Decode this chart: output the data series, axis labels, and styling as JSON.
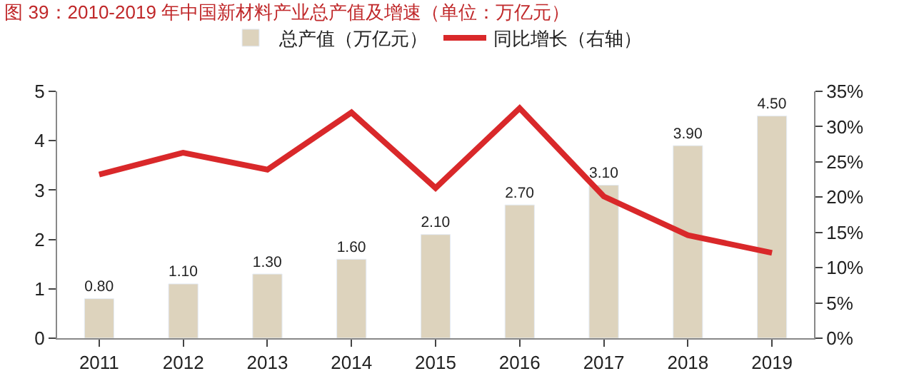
{
  "chart_data": {
    "type": "bar",
    "title": "图 39：2010-2019 年中国新材料产业总产值及增速（单位：万亿元）",
    "categories": [
      "2011",
      "2012",
      "2013",
      "2014",
      "2015",
      "2016",
      "2017",
      "2018",
      "2019"
    ],
    "series": [
      {
        "name": "总产值（万亿元）",
        "color": "#ddd3bd",
        "values": [
          0.8,
          1.1,
          1.3,
          1.6,
          2.1,
          2.7,
          3.1,
          3.9,
          4.5
        ],
        "value_labels": [
          "0.80",
          "1.10",
          "1.30",
          "1.60",
          "2.10",
          "2.70",
          "3.10",
          "3.90",
          "4.50"
        ]
      },
      {
        "name": "同比增长（右轴）",
        "type": "line",
        "axis": "y2",
        "color": "#d9282a",
        "values": [
          23.2,
          26.3,
          23.9,
          32.0,
          21.3,
          32.6,
          20.1,
          14.6,
          12.1
        ]
      }
    ],
    "ylim": [
      0,
      5
    ],
    "yticks": [
      0,
      1,
      2,
      3,
      4,
      5
    ],
    "y2lim": [
      0,
      35
    ],
    "y2ticks": [
      {
        "value": 0,
        "label": "0%"
      },
      {
        "value": 5,
        "label": "5%"
      },
      {
        "value": 10,
        "label": "10%"
      },
      {
        "value": 15,
        "label": "15%"
      },
      {
        "value": 20,
        "label": "20%"
      },
      {
        "value": 25,
        "label": "25%"
      },
      {
        "value": 30,
        "label": "30%"
      },
      {
        "value": 35,
        "label": "35%"
      }
    ],
    "legend": "top",
    "marker": "none",
    "line_style": "solid"
  }
}
